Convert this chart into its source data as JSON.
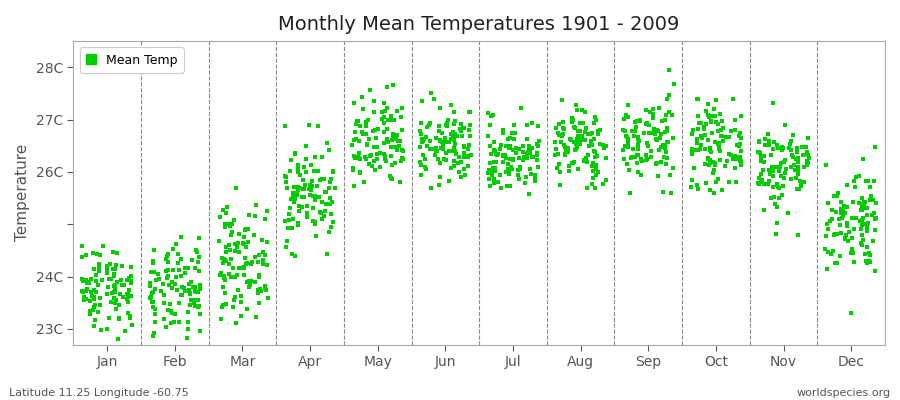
{
  "title": "Monthly Mean Temperatures 1901 - 2009",
  "ylabel": "Temperature",
  "subtitle_left": "Latitude 11.25 Longitude -60.75",
  "subtitle_right": "worldspecies.org",
  "ytick_labels": [
    "23C",
    "24C",
    "",
    "26C",
    "27C",
    "28C"
  ],
  "ytick_values": [
    23,
    24,
    25,
    26,
    27,
    28
  ],
  "ylim": [
    22.7,
    28.5
  ],
  "months": [
    "Jan",
    "Feb",
    "Mar",
    "Apr",
    "May",
    "Jun",
    "Jul",
    "Aug",
    "Sep",
    "Oct",
    "Nov",
    "Dec"
  ],
  "n_years": 109,
  "marker_color": "#00CC00",
  "marker_size": 2.5,
  "bg_color": "#FFFFFF",
  "plot_bg_color": "#FFFFFF",
  "monthly_means": [
    23.8,
    23.7,
    24.3,
    25.6,
    26.5,
    26.5,
    26.3,
    26.5,
    26.6,
    26.5,
    26.1,
    25.1
  ],
  "monthly_stds": [
    0.42,
    0.44,
    0.52,
    0.5,
    0.46,
    0.36,
    0.36,
    0.38,
    0.42,
    0.38,
    0.44,
    0.52
  ],
  "monthly_mins": [
    22.8,
    22.7,
    23.0,
    24.4,
    25.5,
    25.7,
    25.5,
    25.7,
    25.6,
    25.6,
    24.8,
    23.0
  ],
  "monthly_maxs": [
    25.0,
    25.0,
    25.7,
    26.9,
    28.2,
    27.5,
    27.4,
    27.7,
    28.5,
    27.4,
    27.8,
    27.2
  ],
  "title_fontsize": 14,
  "axis_label_fontsize": 10,
  "legend_fontsize": 9
}
